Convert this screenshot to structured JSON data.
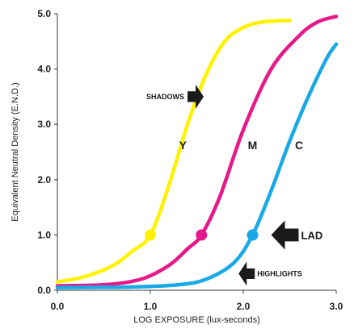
{
  "chart_data": {
    "type": "line",
    "title": "",
    "xlabel": "LOG EXPOSURE (lux-seconds)",
    "ylabel": "Equivalent Neutral Density (E.N.D.)",
    "xlim": [
      0.0,
      3.0
    ],
    "ylim": [
      0.0,
      5.0
    ],
    "x_ticks": [
      "0.0",
      "1.0",
      "2.0",
      "3.0"
    ],
    "y_ticks": [
      "0.0",
      "1.0",
      "2.0",
      "3.0",
      "4.0",
      "5.0"
    ],
    "grid": false,
    "series": [
      {
        "name": "Y",
        "color": "#FFF200",
        "x": [
          0.0,
          0.3,
          0.6,
          0.8,
          1.0,
          1.2,
          1.4,
          1.6,
          1.8,
          2.0,
          2.2,
          2.5
        ],
        "y": [
          0.15,
          0.25,
          0.45,
          0.7,
          1.0,
          1.9,
          3.0,
          3.9,
          4.5,
          4.75,
          4.85,
          4.88
        ]
      },
      {
        "name": "M",
        "color": "#E6198A",
        "x": [
          0.0,
          0.5,
          0.9,
          1.2,
          1.4,
          1.55,
          1.75,
          2.0,
          2.3,
          2.6,
          2.8,
          3.0
        ],
        "y": [
          0.08,
          0.1,
          0.2,
          0.45,
          0.75,
          1.0,
          1.7,
          2.9,
          4.0,
          4.6,
          4.85,
          4.95
        ]
      },
      {
        "name": "C",
        "color": "#19A9E6",
        "x": [
          0.0,
          0.8,
          1.3,
          1.6,
          1.9,
          2.1,
          2.3,
          2.5,
          2.7,
          2.9,
          3.0
        ],
        "y": [
          0.05,
          0.06,
          0.1,
          0.2,
          0.5,
          1.0,
          1.8,
          2.7,
          3.5,
          4.2,
          4.45
        ]
      }
    ],
    "points": [
      {
        "series": "Y",
        "x": 1.0,
        "y": 1.0
      },
      {
        "series": "M",
        "x": 1.55,
        "y": 1.0
      },
      {
        "series": "C",
        "x": 2.1,
        "y": 1.0
      }
    ],
    "curve_labels": [
      {
        "text": "Y",
        "x": 1.35,
        "y": 2.55
      },
      {
        "text": "M",
        "x": 2.1,
        "y": 2.55
      },
      {
        "text": "C",
        "x": 2.6,
        "y": 2.55
      }
    ],
    "annotations": [
      {
        "text": "SHADOWS",
        "x": 1.4,
        "y": 3.5,
        "arrow": "right",
        "size": "small"
      },
      {
        "text": "LAD",
        "x": 2.3,
        "y": 1.0,
        "arrow": "left",
        "size": "big"
      },
      {
        "text": "HIGHLIGHTS",
        "x": 1.95,
        "y": 0.3,
        "arrow": "left",
        "size": "small"
      }
    ]
  }
}
